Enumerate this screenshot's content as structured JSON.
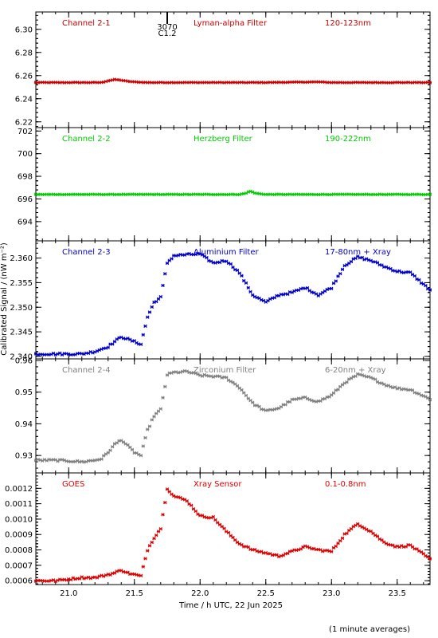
{
  "chart_data": [
    {
      "type": "scatter",
      "title": "",
      "label": "Channel 2-1",
      "filter": "Lyman-alpha Filter",
      "band": "120-123nm",
      "color": "#cc0000",
      "ylim": [
        6.215,
        6.315
      ],
      "yticks": [
        6.22,
        6.24,
        6.26,
        6.28,
        6.3
      ],
      "ytick_labels": [
        "6.22",
        "6.24",
        "6.26",
        "6.28",
        "6.30"
      ],
      "markers": [
        {
          "x": 21.75,
          "label_top": "3070",
          "label_bottom": "C1.2"
        }
      ],
      "x": [
        20.75,
        21.0,
        21.25,
        21.3,
        21.35,
        21.4,
        21.45,
        21.5,
        21.6,
        21.8,
        22.0,
        22.5,
        22.9,
        23.0,
        23.5,
        23.75
      ],
      "y": [
        6.254,
        6.254,
        6.254,
        6.2555,
        6.2565,
        6.256,
        6.255,
        6.2545,
        6.254,
        6.254,
        6.254,
        6.254,
        6.2545,
        6.254,
        6.254,
        6.254
      ]
    },
    {
      "type": "scatter",
      "label": "Channel 2-2",
      "filter": "Herzberg Filter",
      "band": "190-222nm",
      "color": "#00cc00",
      "ylim": [
        692.3,
        702.3
      ],
      "yticks": [
        694,
        696,
        698,
        700,
        702
      ],
      "ytick_labels": [
        "694",
        "696",
        "698",
        "700",
        "702"
      ],
      "x": [
        20.75,
        21.0,
        21.5,
        22.0,
        22.3,
        22.35,
        22.38,
        22.42,
        22.5,
        23.0,
        23.5,
        23.75
      ],
      "y": [
        696.4,
        696.4,
        696.4,
        696.4,
        696.4,
        696.5,
        696.7,
        696.5,
        696.4,
        696.4,
        696.4,
        696.4
      ]
    },
    {
      "type": "scatter",
      "label": "Channel 2-3",
      "filter": "Aluminium Filter",
      "band": "17-80nm + Xray",
      "color": "#0000cc",
      "ylim": [
        2.3395,
        2.3635
      ],
      "yticks": [
        2.34,
        2.345,
        2.35,
        2.355,
        2.36
      ],
      "ytick_labels": [
        "2.340",
        "2.345",
        "2.350",
        "2.355",
        "2.360"
      ],
      "x": [
        20.75,
        20.9,
        21.0,
        21.1,
        21.2,
        21.25,
        21.3,
        21.35,
        21.4,
        21.45,
        21.5,
        21.55,
        21.6,
        21.65,
        21.7,
        21.75,
        21.8,
        21.9,
        22.0,
        22.1,
        22.2,
        22.3,
        22.4,
        22.5,
        22.6,
        22.7,
        22.8,
        22.9,
        23.0,
        23.1,
        23.2,
        23.3,
        23.4,
        23.5,
        23.6,
        23.75
      ],
      "y": [
        2.3405,
        2.3405,
        2.3405,
        2.3405,
        2.341,
        2.3415,
        2.342,
        2.343,
        2.344,
        2.3435,
        2.343,
        2.3425,
        2.348,
        2.351,
        2.352,
        2.359,
        2.3605,
        2.3607,
        2.3608,
        2.359,
        2.3595,
        2.357,
        2.3525,
        2.351,
        2.3525,
        2.353,
        2.354,
        2.3525,
        2.354,
        2.3585,
        2.3602,
        2.3595,
        2.3583,
        2.3573,
        2.357,
        2.3535
      ]
    },
    {
      "type": "scatter",
      "label": "Channel 2-4",
      "filter": "Zirconium Filter",
      "band": "6-20nm + Xray",
      "color": "#808080",
      "ylim": [
        0.9245,
        0.9605
      ],
      "yticks": [
        0.93,
        0.94,
        0.95,
        0.96
      ],
      "ytick_labels": [
        "0.93",
        "0.94",
        "0.95",
        "0.96"
      ],
      "x": [
        20.75,
        20.9,
        21.0,
        21.1,
        21.2,
        21.25,
        21.3,
        21.35,
        21.4,
        21.45,
        21.5,
        21.55,
        21.6,
        21.65,
        21.7,
        21.75,
        21.8,
        21.9,
        22.0,
        22.1,
        22.2,
        22.3,
        22.4,
        22.5,
        22.6,
        22.7,
        22.8,
        22.9,
        23.0,
        23.1,
        23.2,
        23.3,
        23.4,
        23.5,
        23.6,
        23.75
      ],
      "y": [
        0.9285,
        0.9285,
        0.9283,
        0.928,
        0.9285,
        0.929,
        0.931,
        0.9335,
        0.935,
        0.933,
        0.931,
        0.93,
        0.938,
        0.9425,
        0.9445,
        0.9555,
        0.9562,
        0.9565,
        0.9553,
        0.955,
        0.9545,
        0.9515,
        0.9465,
        0.944,
        0.945,
        0.9475,
        0.9482,
        0.947,
        0.949,
        0.953,
        0.9555,
        0.9545,
        0.9525,
        0.9512,
        0.9508,
        0.9478
      ]
    },
    {
      "type": "scatter",
      "label": "GOES",
      "filter": "Xray Sensor",
      "band": "0.1-0.8nm",
      "color": "#dd0000",
      "ylim": [
        0.000575,
        0.0013
      ],
      "yticks": [
        0.0006,
        0.0007,
        0.0008,
        0.0009,
        0.001,
        0.0011,
        0.0012
      ],
      "ytick_labels": [
        "0.0006",
        "0.0007",
        "0.0008",
        "0.0009",
        "0.0010",
        "0.0011",
        "0.0012"
      ],
      "x": [
        20.75,
        20.9,
        21.0,
        21.1,
        21.2,
        21.25,
        21.3,
        21.35,
        21.4,
        21.45,
        21.5,
        21.55,
        21.6,
        21.65,
        21.7,
        21.75,
        21.8,
        21.9,
        22.0,
        22.1,
        22.2,
        22.3,
        22.4,
        22.5,
        22.6,
        22.7,
        22.8,
        22.9,
        23.0,
        23.1,
        23.2,
        23.3,
        23.4,
        23.5,
        23.6,
        23.75
      ],
      "y": [
        0.0006,
        0.0006,
        0.00061,
        0.00062,
        0.00062,
        0.00063,
        0.00064,
        0.00065,
        0.00067,
        0.00065,
        0.00064,
        0.00063,
        0.0008,
        0.00088,
        0.00094,
        0.0012,
        0.00115,
        0.00112,
        0.00102,
        0.00101,
        0.00092,
        0.00084,
        0.0008,
        0.00078,
        0.00076,
        0.00079,
        0.00082,
        0.0008,
        0.00079,
        0.0009,
        0.00097,
        0.00092,
        0.00085,
        0.00082,
        0.00083,
        0.00074
      ]
    }
  ],
  "axes": {
    "xlim": [
      20.75,
      23.75
    ],
    "xticks": [
      21.0,
      21.5,
      22.0,
      22.5,
      23.0,
      23.5
    ],
    "xtick_labels": [
      "21.0",
      "21.5",
      "22.0",
      "22.5",
      "23.0",
      "23.5"
    ],
    "xlabel": "Time / h UTC, 22 Jun 2025",
    "ylabel": "Calibrated Signal / (nW m⁻²)"
  },
  "footer": "(1 minute averages)"
}
